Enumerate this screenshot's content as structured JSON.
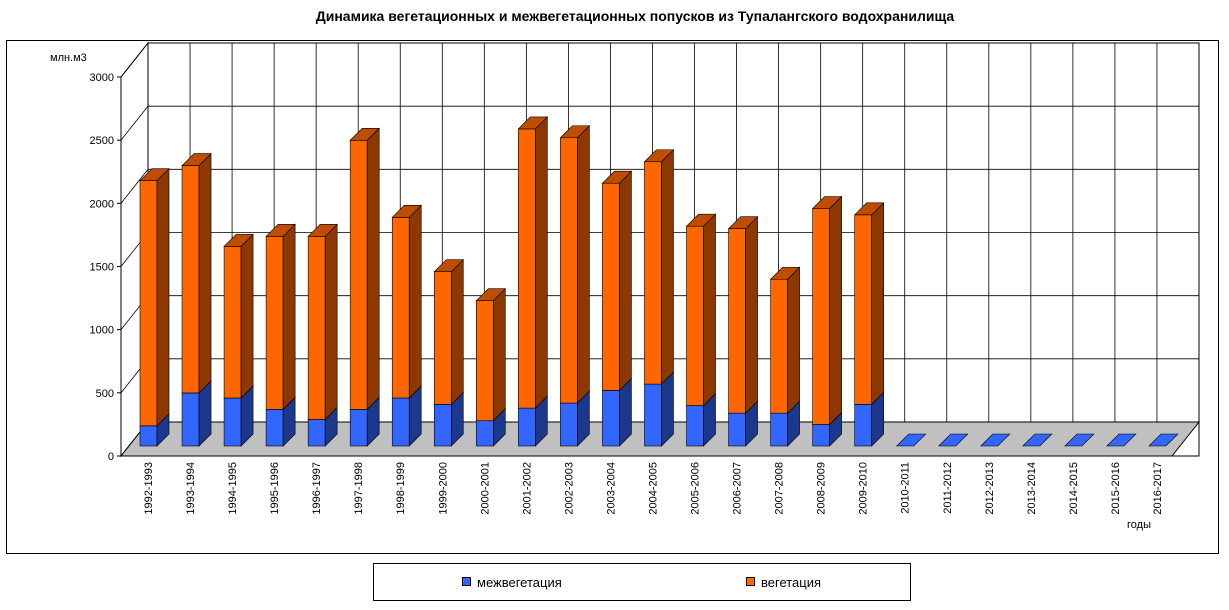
{
  "chart_data": {
    "type": "bar",
    "stacked": true,
    "three_d": true,
    "title": "Динамика вегетационных и межвегетационных попусков из Тупалангского водохранилища",
    "ylabel": "млн.м3",
    "xlabel": "годы",
    "ylim": [
      0,
      3000
    ],
    "yticks": [
      0,
      500,
      1000,
      1500,
      2000,
      2500,
      3000
    ],
    "grid": true,
    "legend_position": "bottom",
    "categories": [
      "1992-1993",
      "1993-1994",
      "1994-1995",
      "1995-1996",
      "1996-1997",
      "1997-1998",
      "1998-1999",
      "1999-2000",
      "2000-2001",
      "2001-2002",
      "2002-2003",
      "2003-2004",
      "2004-2005",
      "2005-2006",
      "2006-2007",
      "2007-2008",
      "2008-2009",
      "2009-2010",
      "2010-2011",
      "2011-2012",
      "2012-2013",
      "2013-2014",
      "2014-2015",
      "2015-2016",
      "2016-2017"
    ],
    "series": [
      {
        "name": "межвегетация",
        "color": "#3366FF",
        "values": [
          160,
          420,
          380,
          290,
          210,
          290,
          380,
          330,
          200,
          300,
          340,
          440,
          490,
          320,
          260,
          260,
          170,
          330,
          0,
          0,
          0,
          0,
          0,
          0,
          0
        ]
      },
      {
        "name": "вегетация",
        "color": "#FF6600",
        "values": [
          1940,
          1800,
          1200,
          1370,
          1450,
          2130,
          1430,
          1050,
          950,
          2210,
          2100,
          1640,
          1760,
          1420,
          1460,
          1060,
          1710,
          1500,
          0,
          0,
          0,
          0,
          0,
          0,
          0
        ]
      }
    ]
  }
}
